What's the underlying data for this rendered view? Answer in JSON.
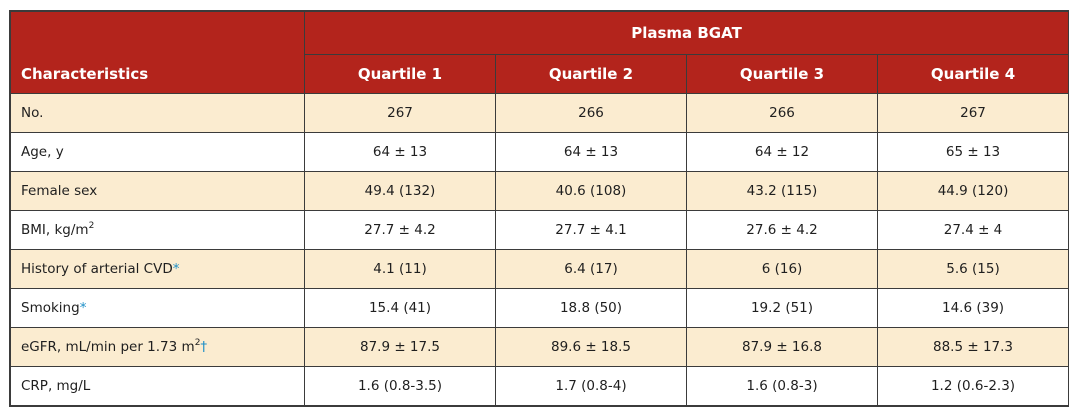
{
  "table": {
    "group_header": "Plasma BGAT",
    "characteristics_header": "Characteristics",
    "quartile_headers": [
      "Quartile 1",
      "Quartile 2",
      "Quartile 3",
      "Quartile 4"
    ],
    "row_colors": {
      "shaded": "#fbecd0",
      "plain": "#ffffff",
      "header": "#b3241c",
      "note_mark": "#1e8fc7"
    },
    "rows": [
      {
        "label": "No.",
        "sup": "",
        "mark": "",
        "values": [
          "267",
          "266",
          "266",
          "267"
        ]
      },
      {
        "label": "Age, y",
        "sup": "",
        "mark": "",
        "values": [
          "64 ± 13",
          "64 ± 13",
          "64 ± 12",
          "65 ± 13"
        ]
      },
      {
        "label": "Female sex",
        "sup": "",
        "mark": "",
        "values": [
          "49.4 (132)",
          "40.6 (108)",
          "43.2 (115)",
          "44.9 (120)"
        ]
      },
      {
        "label": "BMI, kg/m",
        "sup": "2",
        "mark": "",
        "values": [
          "27.7 ± 4.2",
          "27.7 ± 4.1",
          "27.6 ± 4.2",
          "27.4 ± 4"
        ]
      },
      {
        "label": "History of arterial CVD",
        "sup": "",
        "mark": "*",
        "values": [
          "4.1 (11)",
          "6.4 (17)",
          "6 (16)",
          "5.6 (15)"
        ]
      },
      {
        "label": "Smoking",
        "sup": "",
        "mark": "*",
        "values": [
          "15.4 (41)",
          "18.8 (50)",
          "19.2 (51)",
          "14.6 (39)"
        ]
      },
      {
        "label": "eGFR, mL/min per 1.73 m",
        "sup": "2",
        "mark": "†",
        "values": [
          "87.9 ± 17.5",
          "89.6 ± 18.5",
          "87.9 ± 16.8",
          "88.5 ± 17.3"
        ]
      },
      {
        "label": "CRP, mg/L",
        "sup": "",
        "mark": "",
        "values": [
          "1.6 (0.8-3.5)",
          "1.7 (0.8-4)",
          "1.6 (0.8-3)",
          "1.2 (0.6-2.3)"
        ]
      }
    ]
  }
}
